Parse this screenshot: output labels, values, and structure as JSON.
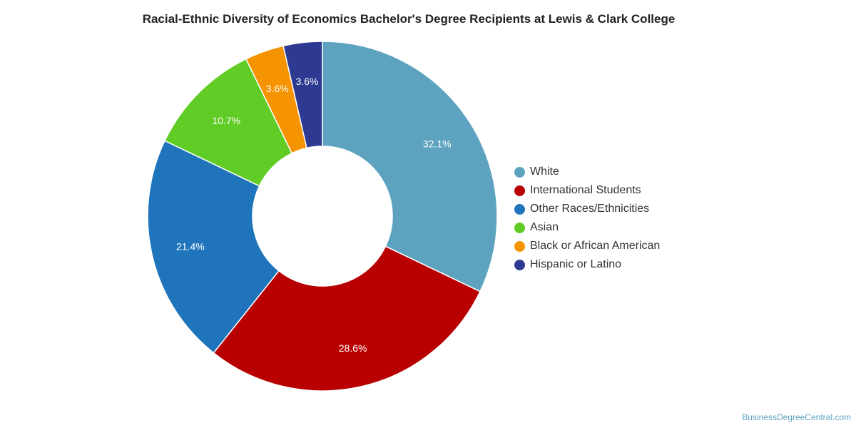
{
  "chart_data": {
    "type": "pie",
    "variant": "donut",
    "title": "Racial-Ethnic Diversity of Economics Bachelor's Degree Recipients at Lewis & Clark College",
    "categories": [
      "White",
      "International Students",
      "Other Races/Ethnicities",
      "Asian",
      "Black or African American",
      "Hispanic or Latino"
    ],
    "values": [
      32.1,
      28.6,
      21.4,
      10.7,
      3.6,
      3.6
    ],
    "labels": [
      "32.1%",
      "28.6%",
      "21.4%",
      "10.7%",
      "3.6%",
      "3.6%"
    ],
    "colors": [
      "#5da3c0",
      "#b80000",
      "#1f74bb",
      "#60cc25",
      "#f59300",
      "#2e3a91"
    ],
    "legend_position": "right"
  },
  "footer": {
    "source": "BusinessDegreeCentral.com"
  }
}
